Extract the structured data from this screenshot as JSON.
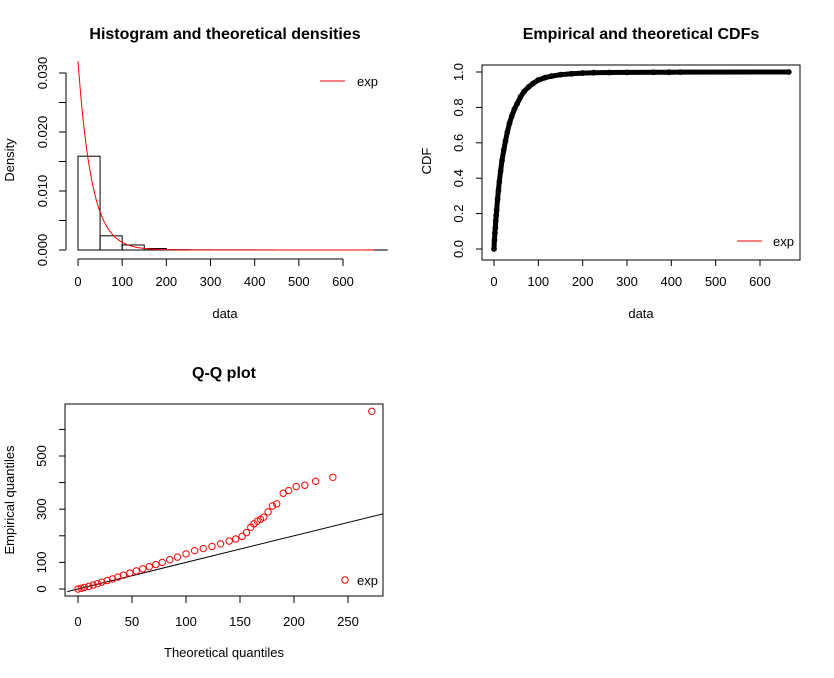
{
  "chart_data": [
    {
      "type": "bar",
      "title": "Histogram and theoretical densities",
      "xlabel": "data",
      "ylabel": "Density",
      "xlim": [
        0,
        690
      ],
      "ylim": [
        0,
        0.03
      ],
      "xticks": [
        0,
        100,
        200,
        300,
        400,
        500,
        600
      ],
      "yticks": [
        0.0,
        0.01,
        0.02,
        0.03
      ],
      "ytick_labels": [
        "0.000",
        "0.010",
        "0.020",
        "0.030"
      ],
      "bins": [
        {
          "x0": 0,
          "x1": 50,
          "density": 0.0159
        },
        {
          "x0": 50,
          "x1": 100,
          "density": 0.0024
        },
        {
          "x0": 100,
          "x1": 150,
          "density": 0.00085
        },
        {
          "x0": 150,
          "x1": 200,
          "density": 0.00025
        },
        {
          "x0": 200,
          "x1": 250,
          "density": 5e-05
        },
        {
          "x0": 250,
          "x1": 300,
          "density": 3e-05
        },
        {
          "x0": 300,
          "x1": 350,
          "density": 2e-05
        },
        {
          "x0": 350,
          "x1": 400,
          "density": 2e-05
        },
        {
          "x0": 400,
          "x1": 450,
          "density": 1e-05
        },
        {
          "x0": 650,
          "x1": 700,
          "density": 1e-05
        }
      ],
      "density_curve": {
        "name": "exp",
        "rate": 0.032,
        "color": "#ff0000"
      },
      "legend": {
        "entries": [
          "exp"
        ],
        "position": "top-right"
      }
    },
    {
      "type": "line",
      "title": "Empirical and theoretical CDFs",
      "xlabel": "data",
      "ylabel": "CDF",
      "xlim": [
        0,
        680
      ],
      "ylim": [
        0,
        1
      ],
      "xticks": [
        0,
        100,
        200,
        300,
        400,
        500,
        600
      ],
      "yticks": [
        0.0,
        0.2,
        0.4,
        0.6,
        0.8,
        1.0
      ],
      "ytick_labels": [
        "0.0",
        "0.2",
        "0.4",
        "0.6",
        "0.8",
        "1.0"
      ],
      "empirical_points": {
        "x": [
          0,
          1,
          2,
          3,
          4,
          5,
          6,
          8,
          10,
          12,
          15,
          18,
          22,
          26,
          30,
          35,
          40,
          46,
          52,
          60,
          68,
          78,
          88,
          100,
          115,
          130,
          150,
          175,
          200,
          225,
          260,
          300,
          360,
          395,
          420,
          665
        ],
        "y": [
          0.0,
          0.05,
          0.09,
          0.12,
          0.16,
          0.19,
          0.22,
          0.28,
          0.33,
          0.38,
          0.44,
          0.5,
          0.56,
          0.61,
          0.66,
          0.71,
          0.75,
          0.79,
          0.82,
          0.86,
          0.89,
          0.915,
          0.935,
          0.955,
          0.968,
          0.977,
          0.985,
          0.99,
          0.994,
          0.996,
          0.997,
          0.998,
          0.9985,
          0.999,
          0.9995,
          1.0
        ]
      },
      "theoretical_curve": {
        "name": "exp",
        "rate": 0.032,
        "color": "#ff0000"
      },
      "legend": {
        "entries": [
          "exp"
        ],
        "position": "bottom-right"
      }
    },
    {
      "type": "scatter",
      "title": "Q-Q plot",
      "xlabel": "Theoretical quantiles",
      "ylabel": "Empirical quantiles",
      "xlim": [
        -5,
        280
      ],
      "ylim": [
        -20,
        680
      ],
      "xticks": [
        0,
        50,
        100,
        150,
        200,
        250
      ],
      "yticks": [
        0,
        100,
        300,
        500
      ],
      "yminor_ticks": [
        200,
        400,
        600
      ],
      "points": {
        "x": [
          0,
          3,
          6,
          10,
          14,
          18,
          22,
          27,
          32,
          37,
          42,
          48,
          54,
          60,
          66,
          72,
          78,
          85,
          92,
          100,
          108,
          116,
          124,
          132,
          140,
          146,
          152,
          156,
          160,
          163,
          166,
          169,
          172,
          176,
          180,
          184,
          190,
          195,
          202,
          210,
          220,
          236,
          272
        ],
        "y": [
          0,
          3,
          6,
          10,
          15,
          20,
          26,
          32,
          38,
          45,
          52,
          60,
          68,
          76,
          84,
          92,
          100,
          110,
          120,
          132,
          144,
          152,
          160,
          170,
          180,
          188,
          198,
          212,
          232,
          245,
          255,
          262,
          270,
          290,
          312,
          320,
          360,
          370,
          385,
          390,
          405,
          420,
          668
        ]
      },
      "reference_line": {
        "slope": 1,
        "intercept": 0
      },
      "point_color": "#ff0000",
      "legend": {
        "entries": [
          "exp"
        ],
        "position": "bottom-right"
      }
    }
  ]
}
